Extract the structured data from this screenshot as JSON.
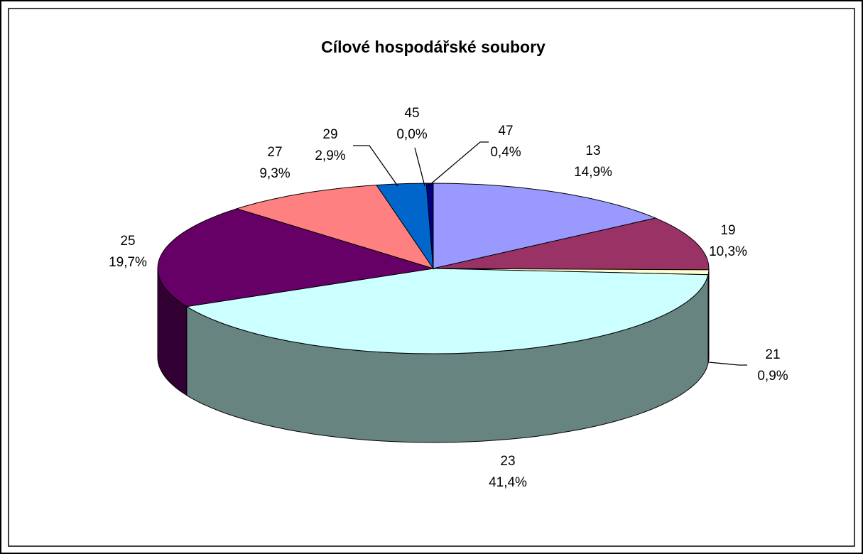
{
  "chart_data": {
    "type": "pie3d",
    "title": "Cílové hospodářské soubory",
    "categories": [
      "13",
      "19",
      "21",
      "23",
      "25",
      "27",
      "29",
      "45",
      "47"
    ],
    "values": [
      14.9,
      10.3,
      0.9,
      41.4,
      19.7,
      9.3,
      2.9,
      0.0,
      0.4
    ],
    "value_labels": [
      "14,9%",
      "10,3%",
      "0,9%",
      "41,4%",
      "19,7%",
      "9,3%",
      "2,9%",
      "0,0%",
      "0,4%"
    ],
    "colors": [
      "#9999ff",
      "#993366",
      "#ffffcc",
      "#ccffff",
      "#660066",
      "#ff8080",
      "#0066cc",
      "#ccccff",
      "#000080"
    ],
    "side_colors": [
      "#5c5c99",
      "#5c1f3d",
      "#99997a",
      "#688480",
      "#330033",
      "#994d4d",
      "#003d7a",
      "#7a7a99",
      "#00004d"
    ]
  }
}
